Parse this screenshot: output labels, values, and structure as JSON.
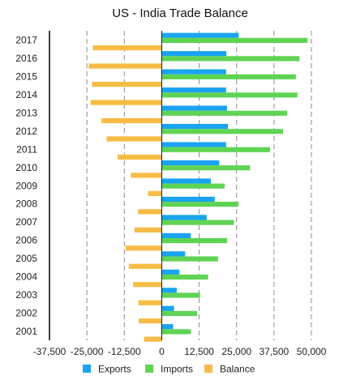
{
  "chart_data": {
    "type": "bar",
    "orientation": "horizontal",
    "title": "US - India Trade Balance",
    "categories": [
      "2017",
      "2016",
      "2015",
      "2014",
      "2013",
      "2012",
      "2011",
      "2010",
      "2009",
      "2008",
      "2007",
      "2006",
      "2005",
      "2004",
      "2003",
      "2002",
      "2001"
    ],
    "series": [
      {
        "name": "Exports",
        "color": "#1aa3f0",
        "values": [
          25700,
          21600,
          21500,
          21500,
          21800,
          22100,
          21500,
          19200,
          16400,
          17700,
          15000,
          9700,
          7800,
          5900,
          5000,
          4100,
          3800
        ]
      },
      {
        "name": "Imports",
        "color": "#5fd454",
        "values": [
          48700,
          46000,
          44800,
          45300,
          41900,
          40500,
          36200,
          29500,
          21000,
          25600,
          24100,
          21800,
          18800,
          15500,
          12800,
          11800,
          9700
        ]
      },
      {
        "name": "Balance",
        "color": "#f7bc45",
        "values": [
          -23000,
          -24400,
          -23300,
          -23800,
          -20100,
          -18400,
          -14700,
          -10300,
          -4600,
          -7900,
          -9100,
          -12100,
          -11000,
          -9600,
          -7800,
          -7700,
          -5900
        ]
      }
    ],
    "xlim": [
      -37500,
      50000
    ],
    "xticks": [
      -37500,
      -25000,
      -12500,
      0,
      12500,
      25000,
      37500,
      50000
    ],
    "xtick_labels": [
      "-37,500",
      "-25,000",
      "-12,500",
      "0",
      "12,500",
      "25,000",
      "37,500",
      "50,000"
    ],
    "grid": true,
    "legend_position": "bottom"
  }
}
